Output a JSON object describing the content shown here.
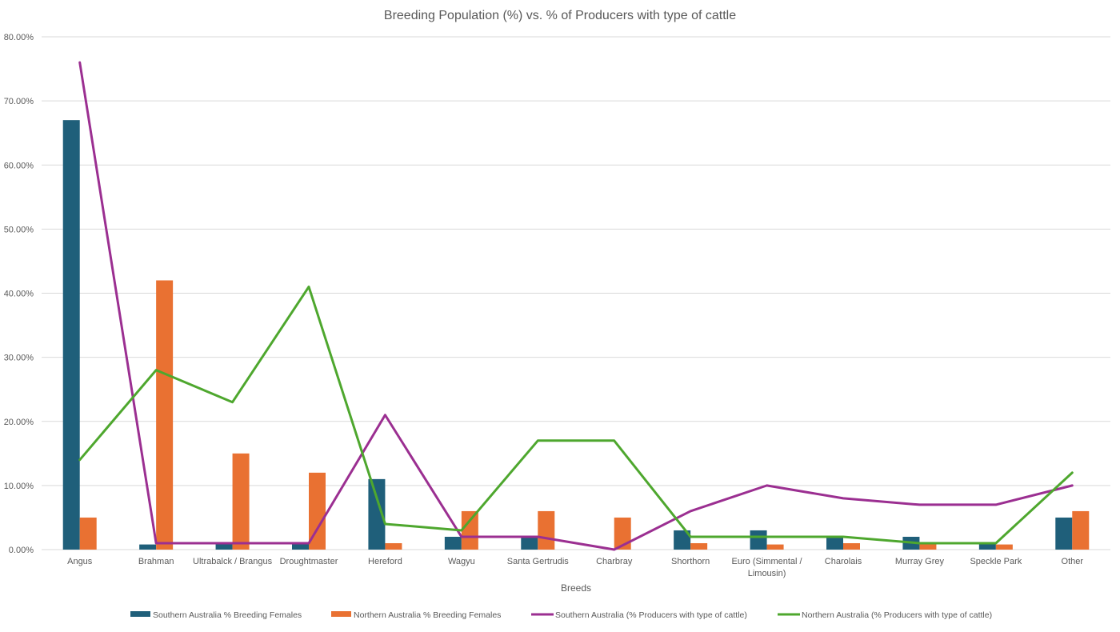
{
  "chart_data": {
    "type": "bar",
    "title": "Breeding Population (%) vs. % of Producers with type of cattle",
    "xlabel": "Breeds",
    "ylabel": "",
    "ylim": [
      0,
      80
    ],
    "y_ticks": [
      "0.00%",
      "10.00%",
      "20.00%",
      "30.00%",
      "40.00%",
      "50.00%",
      "60.00%",
      "70.00%",
      "80.00%"
    ],
    "grid": true,
    "legend_position": "bottom",
    "categories": [
      [
        "Angus"
      ],
      [
        "Brahman"
      ],
      [
        "Ultrabalck / Brangus"
      ],
      [
        "Droughtmaster"
      ],
      [
        "Hereford"
      ],
      [
        "Wagyu"
      ],
      [
        "Santa Gertrudis"
      ],
      [
        "Charbray"
      ],
      [
        "Shorthorn"
      ],
      [
        "Euro (Simmental /",
        "Limousin)"
      ],
      [
        "Charolais"
      ],
      [
        "Murray Grey"
      ],
      [
        "Speckle Park"
      ],
      [
        "Other"
      ]
    ],
    "series": [
      {
        "name": "Southern Australia % Breeding Females",
        "kind": "bar",
        "color": "#1f5f7a",
        "values": [
          67,
          0.8,
          1,
          1,
          11,
          2,
          2,
          0,
          3,
          3,
          2,
          2,
          1,
          5
        ]
      },
      {
        "name": "Northern Australia % Breeding Females",
        "kind": "bar",
        "color": "#e97132",
        "values": [
          5,
          42,
          15,
          12,
          1,
          6,
          6,
          5,
          1,
          0.8,
          1,
          1,
          0.8,
          6
        ]
      },
      {
        "name": "Southern Australia (% Producers with type of cattle)",
        "kind": "line",
        "color": "#9b2f91",
        "values": [
          76,
          1,
          1,
          1,
          21,
          2,
          2,
          0,
          6,
          10,
          8,
          7,
          7,
          10
        ]
      },
      {
        "name": "Northern Australia (% Producers with type of cattle)",
        "kind": "line",
        "color": "#4ea72e",
        "values": [
          14,
          28,
          23,
          41,
          4,
          3,
          17,
          17,
          2,
          2,
          2,
          1,
          1,
          12
        ]
      }
    ]
  }
}
